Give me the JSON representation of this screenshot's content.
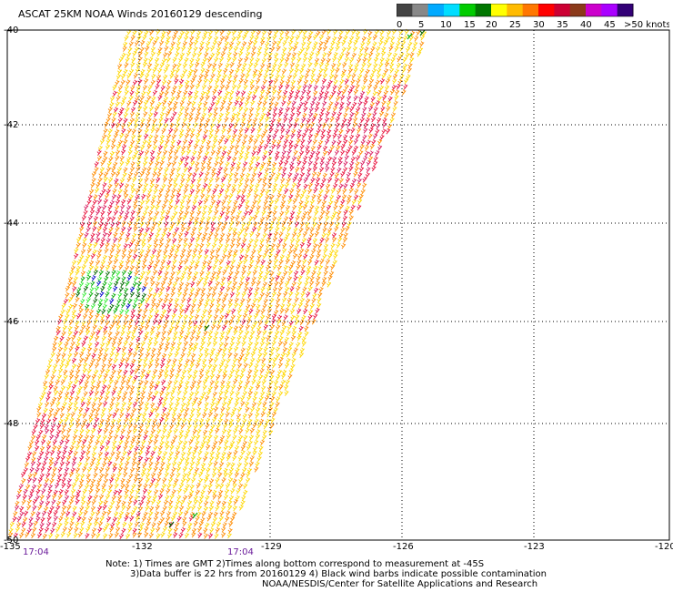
{
  "title": "ASCAT 25KM NOAA Winds 20160129 descending",
  "legend": {
    "colors": [
      "#444444",
      "#888888",
      "#00aaff",
      "#00ddff",
      "#00cc00",
      "#007700",
      "#ffff00",
      "#ffbb00",
      "#ff7700",
      "#ff0000",
      "#cc0033",
      "#8b3a1a",
      "#cc00cc",
      "#aa00ff",
      "#330077"
    ],
    "labels": [
      "0",
      "5",
      "10",
      "15",
      "20",
      "25",
      "30",
      "35",
      "40",
      "45",
      ">50 knots"
    ]
  },
  "map": {
    "lat_labels": [
      "-40",
      "-42",
      "-44",
      "-46",
      "-48",
      "-50"
    ],
    "lon_labels": [
      "-135",
      "-132",
      "-129",
      "-126",
      "-123",
      "-120"
    ],
    "times": [
      "17:04",
      "17:04"
    ],
    "barb_colors": {
      "yellow": "#ffd700",
      "orange": "#ff8c00",
      "red": "#e8103c",
      "pink": "#d81b60",
      "green": "#00aa00",
      "lime": "#33ee33",
      "darkgreen": "#006400",
      "blue": "#0000cc"
    }
  },
  "notes": {
    "line1": "Note: 1) Times are GMT 2)Times along bottom correspond to measurement at -45S",
    "line2": "3)Data buffer is 22 hrs from 20160129 4) Black wind barbs indicate possible contamination",
    "line3": "NOAA/NESDIS/Center for Satellite Applications and Research"
  }
}
